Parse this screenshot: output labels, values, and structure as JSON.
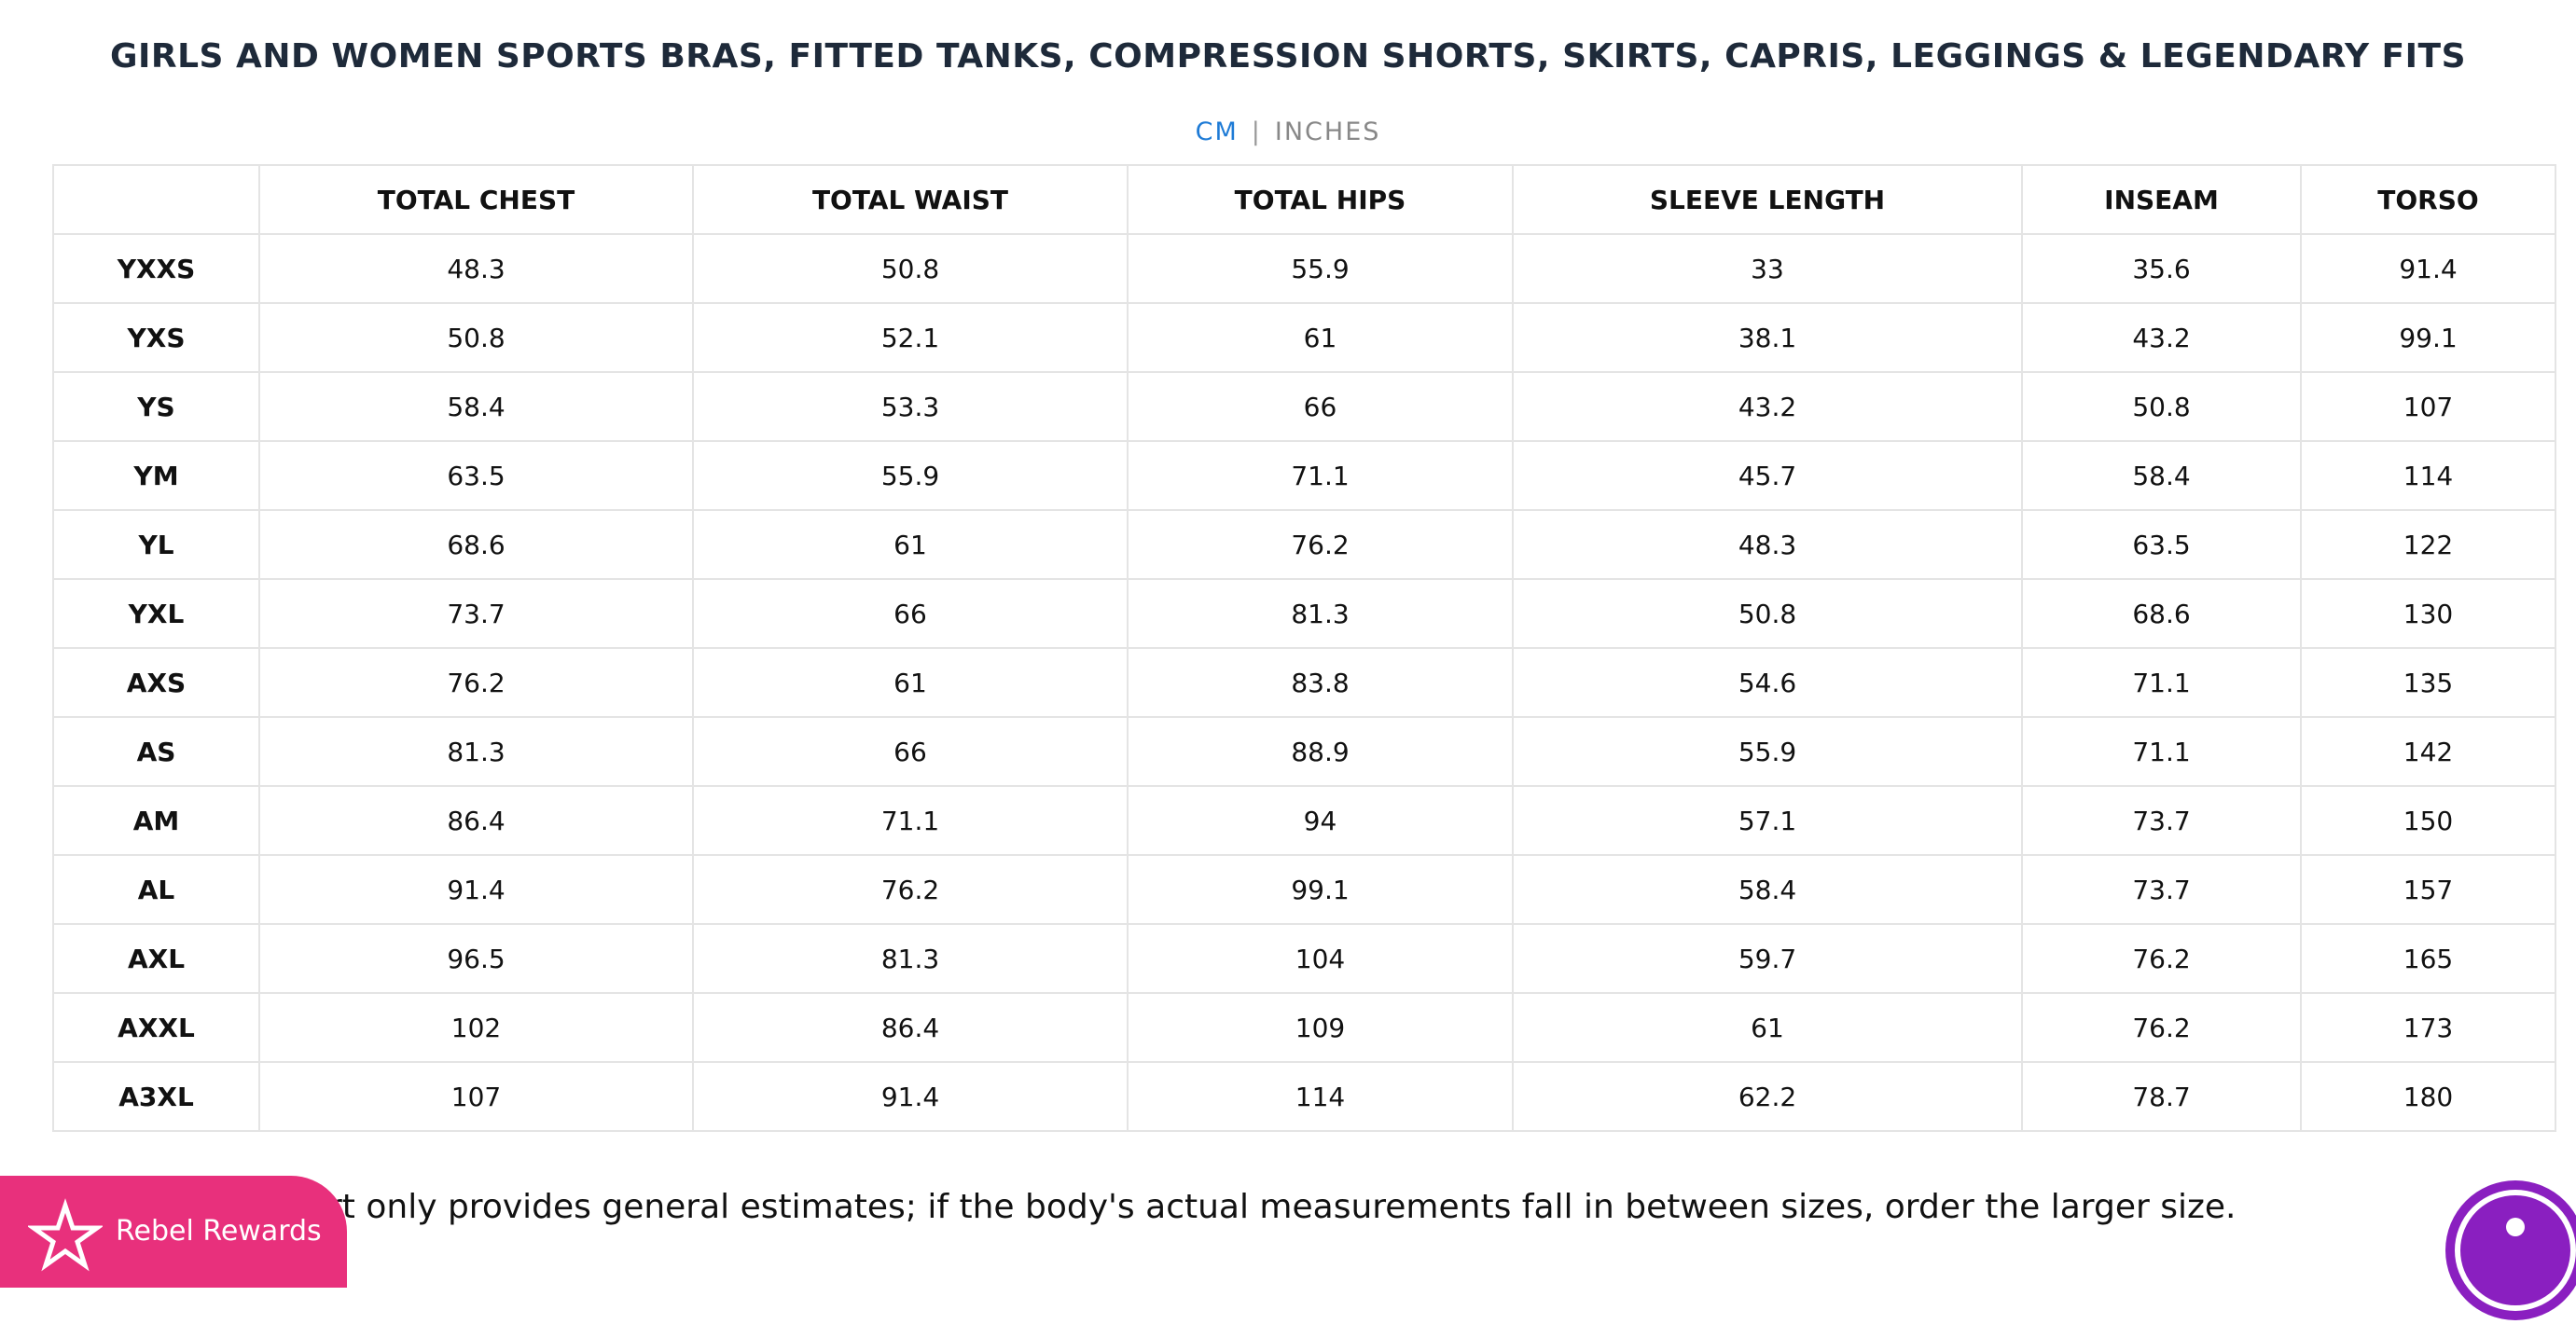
{
  "header": {
    "title": "GIRLS AND WOMEN SPORTS BRAS, FITTED TANKS, COMPRESSION SHORTS, SKIRTS, CAPRIS, LEGGINGS & LEGENDARY FITS"
  },
  "units": {
    "active": "CM",
    "separator": "|",
    "other": "INCHES"
  },
  "table": {
    "columns": [
      "",
      "TOTAL CHEST",
      "TOTAL WAIST",
      "TOTAL HIPS",
      "SLEEVE LENGTH",
      "INSEAM",
      "TORSO"
    ],
    "rows": [
      [
        "YXXS",
        "48.3",
        "50.8",
        "55.9",
        "33",
        "35.6",
        "91.4"
      ],
      [
        "YXS",
        "50.8",
        "52.1",
        "61",
        "38.1",
        "43.2",
        "99.1"
      ],
      [
        "YS",
        "58.4",
        "53.3",
        "66",
        "43.2",
        "50.8",
        "107"
      ],
      [
        "YM",
        "63.5",
        "55.9",
        "71.1",
        "45.7",
        "58.4",
        "114"
      ],
      [
        "YL",
        "68.6",
        "61",
        "76.2",
        "48.3",
        "63.5",
        "122"
      ],
      [
        "YXL",
        "73.7",
        "66",
        "81.3",
        "50.8",
        "68.6",
        "130"
      ],
      [
        "AXS",
        "76.2",
        "61",
        "83.8",
        "54.6",
        "71.1",
        "135"
      ],
      [
        "AS",
        "81.3",
        "66",
        "88.9",
        "55.9",
        "71.1",
        "142"
      ],
      [
        "AM",
        "86.4",
        "71.1",
        "94",
        "57.1",
        "73.7",
        "150"
      ],
      [
        "AL",
        "91.4",
        "76.2",
        "99.1",
        "58.4",
        "73.7",
        "157"
      ],
      [
        "AXL",
        "96.5",
        "81.3",
        "104",
        "59.7",
        "76.2",
        "165"
      ],
      [
        "AXXL",
        "102",
        "86.4",
        "109",
        "61",
        "76.2",
        "173"
      ],
      [
        "A3XL",
        "107",
        "91.4",
        "114",
        "62.2",
        "78.7",
        "180"
      ]
    ]
  },
  "note": "rt only provides general estimates; if the body's actual measurements fall in between sizes, order the larger size.",
  "rewards": {
    "label": "Rebel Rewards"
  }
}
